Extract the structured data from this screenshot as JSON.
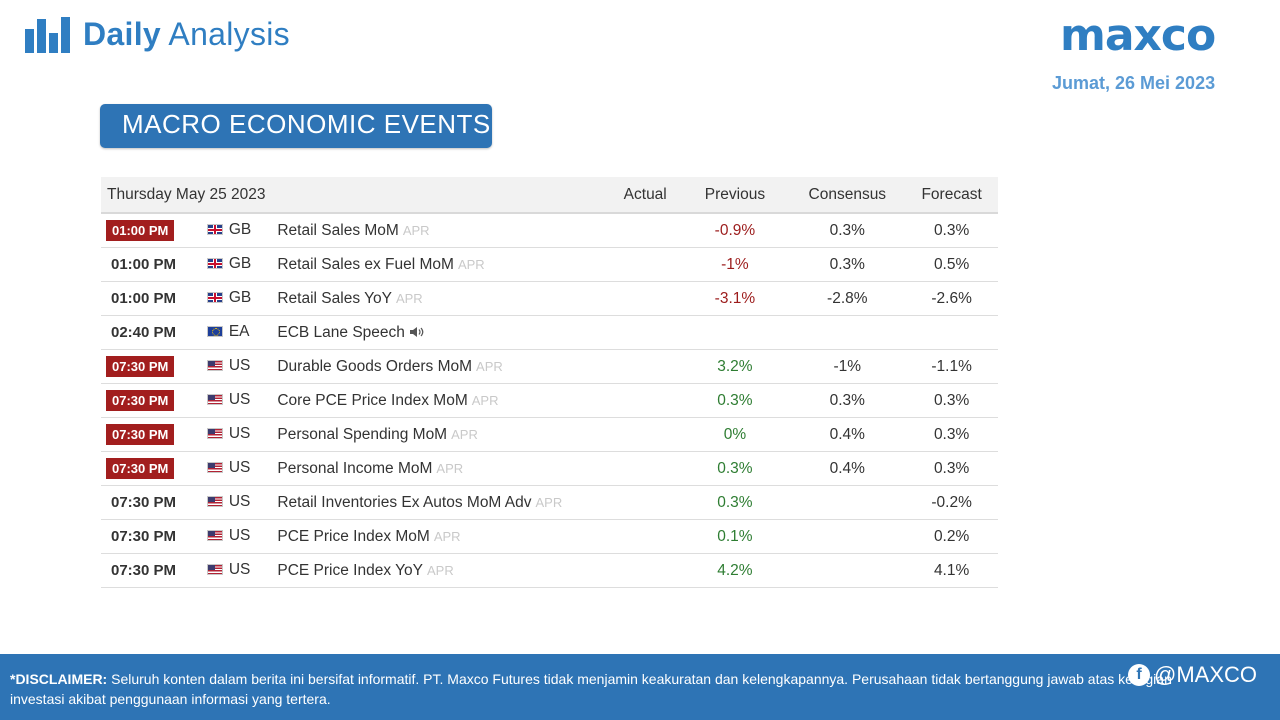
{
  "header": {
    "brand_bold": "Daily",
    "brand_light": "Analysis",
    "logo": "maxco",
    "date": "Jumat,  26 Mei 2023"
  },
  "section": {
    "title": "MACRO ECONOMIC EVENTS"
  },
  "table": {
    "date_header": "Thursday May 25 2023",
    "columns": {
      "actual": "Actual",
      "previous": "Previous",
      "consensus": "Consensus",
      "forecast": "Forecast"
    },
    "rows": [
      {
        "time": "01:00 PM",
        "highlight": true,
        "country": "GB",
        "flag": "gb",
        "event": "Retail Sales MoM",
        "period": "APR",
        "actual": "",
        "previous": "-0.9%",
        "previous_trend": "neg",
        "consensus": "0.3%",
        "forecast": "0.3%"
      },
      {
        "time": "01:00 PM",
        "highlight": false,
        "country": "GB",
        "flag": "gb",
        "event": "Retail Sales ex Fuel MoM",
        "period": "APR",
        "actual": "",
        "previous": "-1%",
        "previous_trend": "neg",
        "consensus": "0.3%",
        "forecast": "0.5%"
      },
      {
        "time": "01:00 PM",
        "highlight": false,
        "country": "GB",
        "flag": "gb",
        "event": "Retail Sales YoY",
        "period": "APR",
        "actual": "",
        "previous": "-3.1%",
        "previous_trend": "neg",
        "consensus": "-2.8%",
        "forecast": "-2.6%"
      },
      {
        "time": "02:40 PM",
        "highlight": false,
        "country": "EA",
        "flag": "eu",
        "event": "ECB Lane Speech",
        "period": "",
        "speaker_icon": true,
        "actual": "",
        "previous": "",
        "previous_trend": "",
        "consensus": "",
        "forecast": ""
      },
      {
        "time": "07:30 PM",
        "highlight": true,
        "country": "US",
        "flag": "us",
        "event": "Durable Goods Orders MoM",
        "period": "APR",
        "actual": "",
        "previous": "3.2%",
        "previous_trend": "pos",
        "consensus": "-1%",
        "forecast": "-1.1%"
      },
      {
        "time": "07:30 PM",
        "highlight": true,
        "country": "US",
        "flag": "us",
        "event": "Core PCE Price Index MoM",
        "period": "APR",
        "actual": "",
        "previous": "0.3%",
        "previous_trend": "pos",
        "consensus": "0.3%",
        "forecast": "0.3%"
      },
      {
        "time": "07:30 PM",
        "highlight": true,
        "country": "US",
        "flag": "us",
        "event": "Personal Spending MoM",
        "period": "APR",
        "actual": "",
        "previous": "0%",
        "previous_trend": "pos",
        "consensus": "0.4%",
        "forecast": "0.3%"
      },
      {
        "time": "07:30 PM",
        "highlight": true,
        "country": "US",
        "flag": "us",
        "event": "Personal Income MoM",
        "period": "APR",
        "actual": "",
        "previous": "0.3%",
        "previous_trend": "pos",
        "consensus": "0.4%",
        "forecast": "0.3%"
      },
      {
        "time": "07:30 PM",
        "highlight": false,
        "country": "US",
        "flag": "us",
        "event": "Retail Inventories Ex Autos MoM Adv",
        "period": "APR",
        "actual": "",
        "previous": "0.3%",
        "previous_trend": "pos",
        "consensus": "",
        "forecast": "-0.2%"
      },
      {
        "time": "07:30 PM",
        "highlight": false,
        "country": "US",
        "flag": "us",
        "event": "PCE Price Index MoM",
        "period": "APR",
        "actual": "",
        "previous": "0.1%",
        "previous_trend": "pos",
        "consensus": "",
        "forecast": "0.2%"
      },
      {
        "time": "07:30 PM",
        "highlight": false,
        "country": "US",
        "flag": "us",
        "event": "PCE Price Index YoY",
        "period": "APR",
        "actual": "",
        "previous": "4.2%",
        "previous_trend": "pos",
        "consensus": "",
        "forecast": "4.1%"
      }
    ]
  },
  "footer": {
    "disclaimer_label": "*DISCLAIMER:",
    "disclaimer_text": " Seluruh konten dalam berita ini bersifat informatif. PT. Maxco Futures tidak menjamin keakuratan dan kelengkapannya. Perusahaan tidak bertanggung jawab atas kerugian investasi akibat penggunaan informasi yang tertera.",
    "social_handle": "@MAXCO",
    "social_icon": "facebook-icon"
  },
  "colors": {
    "brand_blue": "#2e74b5",
    "highlight_red": "#a21e1e",
    "negative": "#9c1c1c",
    "positive": "#2e7d32"
  }
}
